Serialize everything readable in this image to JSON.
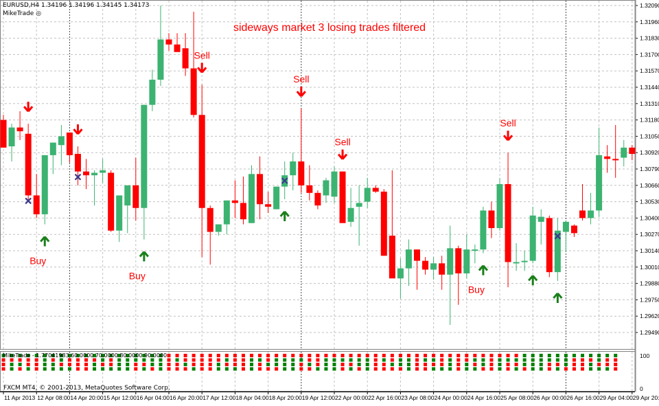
{
  "header": {
    "symbol_line": "EURUSD,H4  1.34196 1.34196 1.34145 1.34173",
    "indicator_name": "MikeTrade ◎"
  },
  "annotation": {
    "title": "sideways market 3 losing trades filtered",
    "color": "#ff0000"
  },
  "indicator_window": {
    "label": "MikeTrade - 1.77041983 60.0000 70.0000 80.0000 90.0000",
    "scale_top": "100",
    "scale_bottom": "0"
  },
  "footer": {
    "copyright": "FXCM MT4, © 2001-2013, MetaQuotes Software Corp."
  },
  "colors": {
    "bull": "#3cb371",
    "bear": "#ff0000",
    "buy_arrow": "#1a7f1a",
    "sell_arrow": "#ff0000",
    "cross": "#3a3a8c",
    "grid": "#c0c0c0",
    "axis": "#808080"
  },
  "chart_data": {
    "type": "candlestick",
    "title": "EURUSD,H4",
    "annotation": "sideways market 3 losing trades filtered",
    "y_axis": {
      "ticks": [
        "1.32090",
        "1.31960",
        "1.31830",
        "1.31700",
        "1.31570",
        "1.31440",
        "1.31310",
        "1.31180",
        "1.31050",
        "1.30920",
        "1.30790",
        "1.30660",
        "1.30530",
        "1.30400",
        "1.30270",
        "1.30140",
        "1.30010",
        "1.29880",
        "1.29750",
        "1.29620",
        "1.29490"
      ],
      "range": [
        1.2949,
        1.3209
      ]
    },
    "x_axis": {
      "ticks": [
        "11 Apr 2013",
        "12 Apr 08:00",
        "14 Apr 20:00",
        "15 Apr 12:00",
        "16 Apr 04:00",
        "16 Apr 20:00",
        "17 Apr 12:00",
        "18 Apr 04:00",
        "18 Apr 20:00",
        "19 Apr 12:00",
        "22 Apr 00:00",
        "22 Apr 16:00",
        "23 Apr 08:00",
        "24 Apr 00:00",
        "24 Apr 16:00",
        "25 Apr 08:00",
        "26 Apr 00:00",
        "26 Apr 16:00",
        "29 Apr 04:00",
        "29 Apr 20:00"
      ]
    },
    "candles": [
      {
        "o": 1.3118,
        "h": 1.3122,
        "l": 1.3096,
        "c": 1.3096
      },
      {
        "o": 1.3097,
        "h": 1.3115,
        "l": 1.3085,
        "c": 1.3112
      },
      {
        "o": 1.3112,
        "h": 1.3125,
        "l": 1.3102,
        "c": 1.3109
      },
      {
        "o": 1.3107,
        "h": 1.3115,
        "l": 1.3053,
        "c": 1.3058
      },
      {
        "o": 1.3058,
        "h": 1.3075,
        "l": 1.304,
        "c": 1.3043
      },
      {
        "o": 1.3043,
        "h": 1.3086,
        "l": 1.3035,
        "c": 1.309
      },
      {
        "o": 1.309,
        "h": 1.3099,
        "l": 1.3075,
        "c": 1.31
      },
      {
        "o": 1.3098,
        "h": 1.3114,
        "l": 1.3082,
        "c": 1.3105
      },
      {
        "o": 1.3108,
        "h": 1.3108,
        "l": 1.3084,
        "c": 1.309
      },
      {
        "o": 1.3091,
        "h": 1.3097,
        "l": 1.3066,
        "c": 1.3077
      },
      {
        "o": 1.3077,
        "h": 1.3087,
        "l": 1.3063,
        "c": 1.3074
      },
      {
        "o": 1.3074,
        "h": 1.3078,
        "l": 1.305,
        "c": 1.3076
      },
      {
        "o": 1.3076,
        "h": 1.3087,
        "l": 1.3068,
        "c": 1.3078
      },
      {
        "o": 1.3076,
        "h": 1.3078,
        "l": 1.3029,
        "c": 1.303
      },
      {
        "o": 1.303,
        "h": 1.3045,
        "l": 1.3021,
        "c": 1.3058
      },
      {
        "o": 1.305,
        "h": 1.3066,
        "l": 1.3028,
        "c": 1.3066
      },
      {
        "o": 1.3066,
        "h": 1.3088,
        "l": 1.3038,
        "c": 1.3048
      },
      {
        "o": 1.3048,
        "h": 1.313,
        "l": 1.3023,
        "c": 1.313
      },
      {
        "o": 1.313,
        "h": 1.3158,
        "l": 1.3125,
        "c": 1.315
      },
      {
        "o": 1.315,
        "h": 1.3209,
        "l": 1.3145,
        "c": 1.3182
      },
      {
        "o": 1.3182,
        "h": 1.3187,
        "l": 1.3173,
        "c": 1.3178
      },
      {
        "o": 1.3178,
        "h": 1.3187,
        "l": 1.3173,
        "c": 1.3172
      },
      {
        "o": 1.3175,
        "h": 1.3187,
        "l": 1.3153,
        "c": 1.3159
      },
      {
        "o": 1.3159,
        "h": 1.3204,
        "l": 1.312,
        "c": 1.3122
      },
      {
        "o": 1.3122,
        "h": 1.3146,
        "l": 1.3009,
        "c": 1.3048
      },
      {
        "o": 1.3048,
        "h": 1.305,
        "l": 1.3003,
        "c": 1.3029
      },
      {
        "o": 1.3029,
        "h": 1.3034,
        "l": 1.3026,
        "c": 1.3035
      },
      {
        "o": 1.3035,
        "h": 1.3049,
        "l": 1.3027,
        "c": 1.3054
      },
      {
        "o": 1.3054,
        "h": 1.307,
        "l": 1.304,
        "c": 1.3052
      },
      {
        "o": 1.3052,
        "h": 1.3073,
        "l": 1.3035,
        "c": 1.3039
      },
      {
        "o": 1.3036,
        "h": 1.3082,
        "l": 1.3036,
        "c": 1.3075
      },
      {
        "o": 1.3075,
        "h": 1.3089,
        "l": 1.3039,
        "c": 1.3051
      },
      {
        "o": 1.3051,
        "h": 1.3061,
        "l": 1.3044,
        "c": 1.3049
      },
      {
        "o": 1.3047,
        "h": 1.3063,
        "l": 1.3047,
        "c": 1.3065
      },
      {
        "o": 1.3065,
        "h": 1.3085,
        "l": 1.3055,
        "c": 1.3074
      },
      {
        "o": 1.3074,
        "h": 1.3092,
        "l": 1.3062,
        "c": 1.3085
      },
      {
        "o": 1.3085,
        "h": 1.3127,
        "l": 1.306,
        "c": 1.3066
      },
      {
        "o": 1.3066,
        "h": 1.3082,
        "l": 1.3054,
        "c": 1.306
      },
      {
        "o": 1.306,
        "h": 1.3062,
        "l": 1.3047,
        "c": 1.305
      },
      {
        "o": 1.3058,
        "h": 1.3072,
        "l": 1.3052,
        "c": 1.307
      },
      {
        "o": 1.3057,
        "h": 1.3081,
        "l": 1.3052,
        "c": 1.3077
      },
      {
        "o": 1.3077,
        "h": 1.3077,
        "l": 1.3037,
        "c": 1.3036
      },
      {
        "o": 1.3037,
        "h": 1.3064,
        "l": 1.3033,
        "c": 1.3048
      },
      {
        "o": 1.3049,
        "h": 1.3066,
        "l": 1.3018,
        "c": 1.3052
      },
      {
        "o": 1.3053,
        "h": 1.3072,
        "l": 1.3048,
        "c": 1.3064
      },
      {
        "o": 1.3064,
        "h": 1.3066,
        "l": 1.306,
        "c": 1.3061
      },
      {
        "o": 1.3061,
        "h": 1.3063,
        "l": 1.3018,
        "c": 1.301
      },
      {
        "o": 1.3026,
        "h": 1.3078,
        "l": 1.2996,
        "c": 1.2992
      },
      {
        "o": 1.2992,
        "h": 1.3008,
        "l": 1.2976,
        "c": 1.3
      },
      {
        "o": 1.3,
        "h": 1.3023,
        "l": 1.2986,
        "c": 1.3015
      },
      {
        "o": 1.3015,
        "h": 1.3015,
        "l": 1.2983,
        "c": 1.3006
      },
      {
        "o": 1.3006,
        "h": 1.3009,
        "l": 1.2995,
        "c": 1.2999
      },
      {
        "o": 1.2999,
        "h": 1.3009,
        "l": 1.2991,
        "c": 1.3004
      },
      {
        "o": 1.3004,
        "h": 1.301,
        "l": 1.2983,
        "c": 1.2995
      },
      {
        "o": 1.2995,
        "h": 1.3034,
        "l": 1.2955,
        "c": 1.3016
      },
      {
        "o": 1.3016,
        "h": 1.3018,
        "l": 1.2971,
        "c": 1.2996
      },
      {
        "o": 1.2996,
        "h": 1.3027,
        "l": 1.2992,
        "c": 1.3015
      },
      {
        "o": 1.3015,
        "h": 1.3019,
        "l": 1.3004,
        "c": 1.3015
      },
      {
        "o": 1.3015,
        "h": 1.3049,
        "l": 1.3012,
        "c": 1.3046
      },
      {
        "o": 1.3046,
        "h": 1.3053,
        "l": 1.3024,
        "c": 1.3032
      },
      {
        "o": 1.3032,
        "h": 1.3072,
        "l": 1.303,
        "c": 1.3067
      },
      {
        "o": 1.3067,
        "h": 1.3092,
        "l": 1.2985,
        "c": 1.3005
      },
      {
        "o": 1.3005,
        "h": 1.302,
        "l": 1.2998,
        "c": 1.3005
      },
      {
        "o": 1.3005,
        "h": 1.3014,
        "l": 1.2998,
        "c": 1.3006
      },
      {
        "o": 1.3006,
        "h": 1.3049,
        "l": 1.3004,
        "c": 1.3042
      },
      {
        "o": 1.3037,
        "h": 1.3047,
        "l": 1.3019,
        "c": 1.3041
      },
      {
        "o": 1.304,
        "h": 1.3042,
        "l": 1.2993,
        "c": 1.2997
      },
      {
        "o": 1.2997,
        "h": 1.304,
        "l": 1.299,
        "c": 1.303
      },
      {
        "o": 1.3029,
        "h": 1.3038,
        "l": 1.3013,
        "c": 1.3037
      },
      {
        "o": 1.3034,
        "h": 1.3035,
        "l": 1.3025,
        "c": 1.3028
      },
      {
        "o": 1.3046,
        "h": 1.3067,
        "l": 1.3038,
        "c": 1.304
      },
      {
        "o": 1.304,
        "h": 1.306,
        "l": 1.3035,
        "c": 1.3046
      },
      {
        "o": 1.3046,
        "h": 1.3112,
        "l": 1.3041,
        "c": 1.309
      },
      {
        "o": 1.3089,
        "h": 1.3098,
        "l": 1.3076,
        "c": 1.3087
      },
      {
        "o": 1.3087,
        "h": 1.3114,
        "l": 1.3072,
        "c": 1.3086
      },
      {
        "o": 1.3088,
        "h": 1.3102,
        "l": 1.3081,
        "c": 1.3096
      },
      {
        "o": 1.3096,
        "h": 1.3098,
        "l": 1.3086,
        "c": 1.3091
      }
    ],
    "signals": [
      {
        "type": "sell",
        "candle": 3,
        "label": ""
      },
      {
        "type": "sell",
        "candle": 9,
        "label": ""
      },
      {
        "type": "sell",
        "candle": 24,
        "label": "Sell"
      },
      {
        "type": "sell",
        "candle": 36,
        "label": "Sell"
      },
      {
        "type": "sell",
        "candle": 41,
        "label": "Sell"
      },
      {
        "type": "sell",
        "candle": 61,
        "label": "Sell"
      },
      {
        "type": "buy",
        "candle": 5,
        "label": "Buy"
      },
      {
        "type": "buy",
        "candle": 17,
        "label": "Buy"
      },
      {
        "type": "buy",
        "candle": 34,
        "label": ""
      },
      {
        "type": "buy",
        "candle": 58,
        "label": "Buy"
      },
      {
        "type": "buy",
        "candle": 64,
        "label": ""
      },
      {
        "type": "buy",
        "candle": 67,
        "label": ""
      }
    ],
    "exits": [
      3,
      9,
      34,
      67
    ]
  }
}
